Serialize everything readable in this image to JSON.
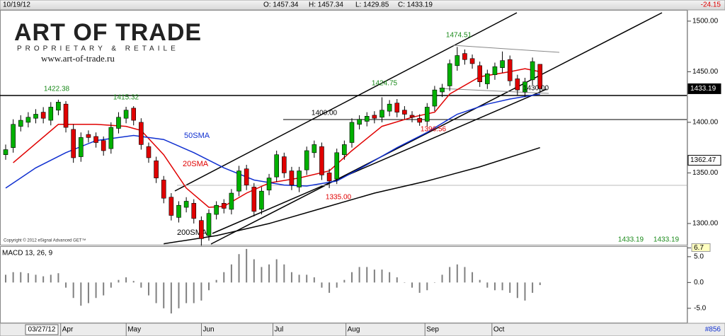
{
  "header": {
    "date": "10/19/12",
    "open": "O: 1457.34",
    "high": "H: 1457.34",
    "low": "L: 1429.85",
    "close": "C: 1433.19",
    "change": "-24.15"
  },
  "logo": {
    "title": "ART OF TRADE",
    "subtitle": "PROPRIETARY & RETAILE",
    "url": "www.art-of-trade.ru"
  },
  "copyright": "Copyright © 2012 eSignal Advanced GET™",
  "footer": "#856",
  "chart_data": [
    {
      "type": "candlestick",
      "start_date": "03/27/12",
      "up_color": "#00b000",
      "down_color": "#e00000",
      "candles": {
        "open": [
          1368,
          1375,
          1396,
          1400,
          1404,
          1410,
          1402,
          1412,
          1418,
          1393,
          1366,
          1388,
          1386,
          1382,
          1374,
          1394,
          1404,
          1414,
          1400,
          1376,
          1362,
          1343,
          1326,
          1306,
          1316,
          1320,
          1303,
          1288,
          1309,
          1320,
          1314,
          1332,
          1354,
          1336,
          1314,
          1333,
          1346,
          1366,
          1352,
          1336,
          1353,
          1370,
          1376,
          1350,
          1344,
          1368,
          1380,
          1398,
          1401,
          1407,
          1405,
          1411,
          1419,
          1412,
          1407,
          1404,
          1401,
          1416,
          1430,
          1436,
          1456,
          1468,
          1463,
          1456,
          1438,
          1447,
          1454,
          1462,
          1443,
          1430,
          1442,
          1457.34
        ],
        "high": [
          1378,
          1403,
          1407,
          1410,
          1413,
          1415,
          1420,
          1422.38,
          1421,
          1398,
          1390,
          1392,
          1390,
          1386,
          1400,
          1410,
          1415.32,
          1416,
          1404,
          1380,
          1366,
          1347,
          1330,
          1322,
          1326,
          1324,
          1307,
          1314,
          1322,
          1324,
          1334,
          1357,
          1358,
          1340,
          1336,
          1349,
          1372,
          1370,
          1356,
          1356,
          1376,
          1382,
          1380,
          1354,
          1374,
          1382,
          1404,
          1407,
          1410,
          1411,
          1424.75,
          1422,
          1423,
          1416,
          1411,
          1408,
          1419,
          1436,
          1438,
          1462,
          1474.51,
          1472,
          1467,
          1460,
          1452,
          1459,
          1470,
          1466,
          1447,
          1444,
          1464,
          1457.34
        ],
        "low": [
          1363,
          1370,
          1391,
          1395,
          1399,
          1399,
          1397,
          1407,
          1390,
          1360,
          1361,
          1380,
          1375,
          1367,
          1369,
          1389,
          1399,
          1397,
          1373,
          1360,
          1340,
          1320,
          1303,
          1301,
          1311,
          1300,
          1278,
          1283,
          1304,
          1310,
          1309,
          1327,
          1333,
          1307,
          1309,
          1328,
          1341,
          1345,
          1333,
          1331,
          1348,
          1365,
          1343,
          1335.0,
          1339,
          1363,
          1375,
          1393,
          1396,
          1399,
          1400,
          1406,
          1405,
          1403,
          1400,
          1396.56,
          1396,
          1411,
          1425,
          1431,
          1451,
          1457,
          1453,
          1435,
          1433,
          1442,
          1449,
          1436,
          1427,
          1425,
          1437,
          1429.85
        ],
        "close": [
          1373,
          1398,
          1402,
          1405,
          1408,
          1404,
          1415,
          1420,
          1395,
          1365,
          1385,
          1385,
          1380,
          1372,
          1395,
          1405,
          1412,
          1402,
          1378,
          1365,
          1345,
          1325,
          1308,
          1318,
          1322,
          1305,
          1285,
          1310,
          1318,
          1315,
          1330,
          1352,
          1338,
          1312,
          1332,
          1345,
          1368,
          1350,
          1338,
          1352,
          1372,
          1378,
          1348,
          1342,
          1370,
          1378,
          1400,
          1403,
          1406,
          1404,
          1412,
          1418,
          1410,
          1408,
          1405,
          1400,
          1415,
          1432,
          1434,
          1458,
          1466,
          1462,
          1458,
          1440,
          1448,
          1455,
          1461,
          1441,
          1432,
          1440,
          1460,
          1433.19
        ]
      },
      "series": [
        {
          "name": "20SMA",
          "color": "#e00000",
          "x": [
            1,
            7,
            12,
            16,
            18,
            21,
            24,
            27,
            29,
            32,
            35,
            39,
            43,
            46,
            50,
            54,
            57,
            59,
            63,
            67,
            69,
            71
          ],
          "values": [
            1360,
            1398,
            1398,
            1396,
            1392,
            1368,
            1335,
            1316,
            1317,
            1330,
            1340,
            1345,
            1352,
            1372,
            1396,
            1405,
            1410,
            1428,
            1445,
            1450,
            1453,
            1450
          ]
        },
        {
          "name": "50SMA",
          "color": "#1030d0",
          "x": [
            0,
            4,
            8,
            12,
            17,
            21,
            25,
            29,
            33,
            37,
            40,
            44,
            48,
            52,
            56,
            60,
            64,
            67,
            71
          ],
          "values": [
            1335,
            1355,
            1370,
            1382,
            1387,
            1383,
            1370,
            1355,
            1343,
            1338,
            1337,
            1342,
            1358,
            1375,
            1390,
            1408,
            1418,
            1423,
            1428
          ]
        },
        {
          "name": "200SMA",
          "color": "#000000",
          "x": [
            21,
            28,
            35,
            42,
            49,
            56,
            63,
            71
          ],
          "values": [
            1280,
            1288,
            1300,
            1315,
            1330,
            1342,
            1356,
            1375
          ]
        }
      ],
      "annotations": [
        {
          "text": "1422.38",
          "color": "#1a8a1a"
        },
        {
          "text": "1415.32",
          "color": "#1a8a1a"
        },
        {
          "text": "1424.75",
          "color": "#1a8a1a"
        },
        {
          "text": "1474.51",
          "color": "#1a8a1a"
        },
        {
          "text": "1400.00",
          "color": "#000000"
        },
        {
          "text": "1396.56",
          "color": "#e00000"
        },
        {
          "text": "1335.00",
          "color": "#e00000"
        },
        {
          "text": "1430.00",
          "color": "#000000"
        }
      ],
      "last_values": [
        "1433.19",
        "1433.19"
      ],
      "price_tags": [
        {
          "value": 1433.19,
          "label": "1433.19"
        },
        {
          "value": 1362.47,
          "label": "1362.47"
        }
      ],
      "month_ticks": [
        {
          "value": 7.5,
          "label": "Apr"
        },
        {
          "value": 16.2,
          "label": "May"
        },
        {
          "value": 26.2,
          "label": "Jun"
        },
        {
          "value": 35.7,
          "label": "Jul"
        },
        {
          "value": 45.4,
          "label": "Aug"
        },
        {
          "value": 55.9,
          "label": "Sep"
        },
        {
          "value": 64.8,
          "label": "Oct"
        }
      ],
      "ylim": [
        1279,
        1510.4
      ],
      "yticks": [
        {
          "value": 1300,
          "label": "1300.00"
        },
        {
          "value": 1350,
          "label": "1350.00"
        },
        {
          "value": 1400,
          "label": "1400.00"
        },
        {
          "value": 1450,
          "label": "1450.00"
        },
        {
          "value": 1500,
          "label": "1500.00"
        }
      ]
    },
    {
      "type": "bar",
      "title": "MACD 13, 26, 9",
      "color": "#808080",
      "values": [
        1.5,
        2.0,
        2.0,
        1.8,
        1.5,
        1.2,
        1.5,
        1.8,
        -1.0,
        -3.0,
        -4.5,
        -4.0,
        -3.0,
        -2.5,
        -1.0,
        0.5,
        1.0,
        0.3,
        -1.0,
        -2.5,
        -4.0,
        -5.0,
        -6.0,
        -5.0,
        -4.0,
        -4.0,
        -3.5,
        -1.5,
        0.5,
        2.0,
        3.5,
        5.5,
        6.5,
        4.5,
        3.0,
        3.5,
        4.5,
        3.5,
        2.0,
        1.5,
        1.5,
        1.0,
        -1.0,
        -2.0,
        -1.0,
        0.5,
        2.0,
        3.0,
        3.0,
        2.5,
        2.5,
        2.0,
        1.0,
        0.0,
        -1.0,
        -2.0,
        -1.5,
        0.0,
        1.5,
        3.0,
        3.5,
        3.0,
        2.0,
        0.5,
        -1.0,
        -1.5,
        -1.5,
        -2.0,
        -3.0,
        -3.5,
        -2.0,
        -0.5
      ],
      "ylim": [
        -7.9,
        6.9
      ],
      "yticks": [
        {
          "value": -5,
          "label": "-5.0"
        },
        {
          "value": 0,
          "label": "0.0"
        },
        {
          "value": 5,
          "label": "5.0"
        },
        6.7
      ]
    }
  ]
}
